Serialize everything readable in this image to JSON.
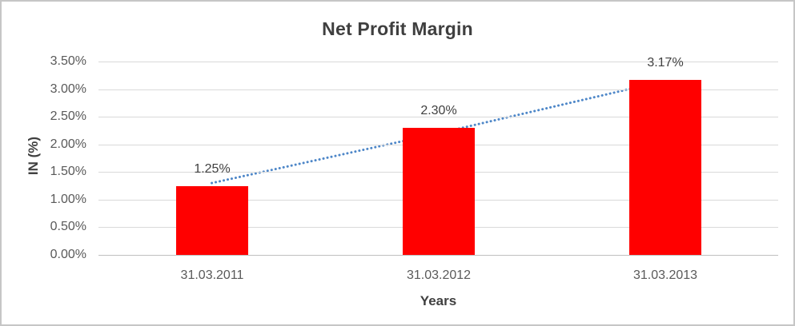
{
  "chart_data": {
    "type": "bar",
    "title": "Net Profit Margin",
    "xlabel": "Years",
    "ylabel": "IN (%)",
    "categories": [
      "31.03.2011",
      "31.03.2012",
      "31.03.2013"
    ],
    "values": [
      1.25,
      2.3,
      3.17
    ],
    "data_labels": [
      "1.25%",
      "2.30%",
      "3.17%"
    ],
    "y_ticks": [
      "3.50%",
      "3.00%",
      "2.50%",
      "2.00%",
      "1.50%",
      "1.00%",
      "0.50%",
      "0.00%"
    ],
    "ylim": [
      0,
      3.5
    ],
    "tick_step": 0.5,
    "grid": true,
    "legend": false,
    "bar_color": "#ff0000",
    "trendline": {
      "style": "dotted",
      "color": "#4e87c8",
      "values": [
        1.3,
        2.2,
        3.15
      ]
    },
    "colors": {
      "gridline": "#d9d9d9",
      "axis_line": "#bfbfbf",
      "title_text": "#3f3f3f",
      "tick_text": "#595959",
      "data_label_text": "#404040",
      "border": "#c6c6c6"
    }
  }
}
